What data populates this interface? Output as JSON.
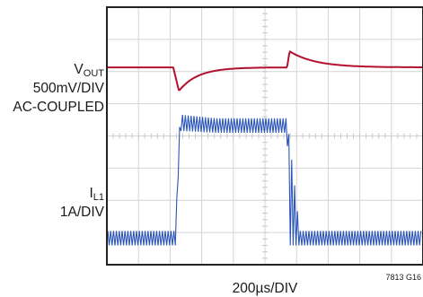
{
  "chart_data": {
    "type": "line",
    "grid": true,
    "divisions": {
      "x": 10,
      "y": 8
    },
    "channels": [
      {
        "name": "VOUT",
        "label_main": "V",
        "label_sub": "OUT",
        "scale": "500mV/DIV",
        "coupling": "AC-COUPLED",
        "color": "#b2102f",
        "baseline_div": 6.13,
        "events": [
          {
            "t_div": 2.1,
            "shape": "dip",
            "depth_div": 0.73,
            "recovery_div": 1.9
          },
          {
            "t_div": 5.7,
            "shape": "overshoot",
            "height_div": 0.5,
            "recovery_div": 2.6
          }
        ]
      },
      {
        "name": "IL1",
        "label_main": "I",
        "label_sub": "L1",
        "scale": "1A/DIV",
        "color": "#2b55b8",
        "low_div": [
          0.6,
          1.05
        ],
        "high_div": [
          4.1,
          4.55
        ],
        "step_up_div": 2.17,
        "step_down_div": 5.7
      }
    ],
    "xlabel": "200µs/DIV",
    "figure_id": "7813 G16"
  }
}
